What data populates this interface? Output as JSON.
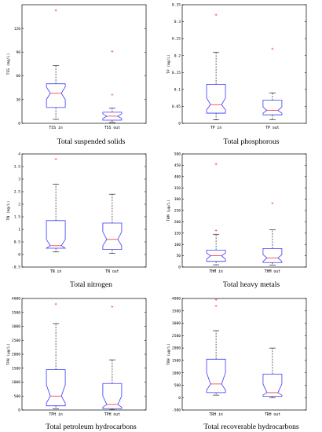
{
  "colors": {
    "box": "#3a3aff",
    "median": "#ff3030",
    "whisker": "#000000",
    "outlier": "#ff3030",
    "axis": "#000000"
  },
  "chart_data": [
    {
      "type": "box",
      "title": "",
      "caption": "Total suspended solids",
      "ylabel": "TSS (mg/L)",
      "ylim": [
        0,
        150
      ],
      "yticks": [
        0,
        30,
        60,
        90,
        120
      ],
      "categories": [
        "TSS in",
        "TSS out"
      ],
      "boxes": [
        {
          "whisker_low": 5,
          "q1": 20,
          "median": 38,
          "q3": 50,
          "whisker_high": 73,
          "notch_low": 30,
          "notch_high": 46,
          "outliers": [
            143
          ]
        },
        {
          "whisker_low": 1,
          "q1": 4,
          "median": 9,
          "q3": 14,
          "whisker_high": 19,
          "notch_low": 6,
          "notch_high": 12,
          "outliers": [
            36,
            91
          ]
        }
      ]
    },
    {
      "type": "box",
      "title": "",
      "caption": "Total phosphorous",
      "ylabel": "TP (mg/L)",
      "ylim": [
        0,
        0.35
      ],
      "yticks": [
        0,
        0.05,
        0.1,
        0.15,
        0.2,
        0.25,
        0.3,
        0.35
      ],
      "categories": [
        "TP in",
        "TP out"
      ],
      "boxes": [
        {
          "whisker_low": 0.01,
          "q1": 0.03,
          "median": 0.055,
          "q3": 0.115,
          "whisker_high": 0.21,
          "notch_low": 0.04,
          "notch_high": 0.075,
          "outliers": [
            0.32
          ]
        },
        {
          "whisker_low": 0.01,
          "q1": 0.025,
          "median": 0.038,
          "q3": 0.068,
          "whisker_high": 0.09,
          "notch_low": 0.03,
          "notch_high": 0.048,
          "outliers": [
            0.22
          ]
        }
      ]
    },
    {
      "type": "box",
      "title": "",
      "caption": "Total nitrogen",
      "ylabel": "TN (mg/L)",
      "ylim": [
        -0.5,
        4
      ],
      "yticks": [
        -0.5,
        0,
        0.5,
        1,
        1.5,
        2,
        2.5,
        3,
        3.5,
        4
      ],
      "categories": [
        "TN in",
        "TN out"
      ],
      "boxes": [
        {
          "whisker_low": 0.1,
          "q1": 0.25,
          "median": 0.35,
          "q3": 1.35,
          "whisker_high": 2.8,
          "notch_low": 0.2,
          "notch_high": 0.6,
          "outliers": [
            3.8
          ]
        },
        {
          "whisker_low": 0.05,
          "q1": 0.2,
          "median": 0.6,
          "q3": 1.25,
          "whisker_high": 2.4,
          "notch_low": 0.35,
          "notch_high": 0.9,
          "outliers": []
        }
      ]
    },
    {
      "type": "box",
      "title": "",
      "caption": "Total heavy metals",
      "ylabel": "THM (µg/L)",
      "ylim": [
        0,
        500
      ],
      "yticks": [
        0,
        50,
        100,
        150,
        200,
        250,
        300,
        350,
        400,
        450,
        500
      ],
      "categories": [
        "THM in",
        "THM out"
      ],
      "boxes": [
        {
          "whisker_low": 10,
          "q1": 25,
          "median": 50,
          "q3": 75,
          "whisker_high": 145,
          "notch_low": 35,
          "notch_high": 62,
          "outliers": [
            162,
            455
          ]
        },
        {
          "whisker_low": 8,
          "q1": 20,
          "median": 40,
          "q3": 82,
          "whisker_high": 165,
          "notch_low": 25,
          "notch_high": 55,
          "outliers": [
            282
          ]
        }
      ]
    },
    {
      "type": "box",
      "title": "",
      "caption": "Total petroleum hydrocarbons",
      "ylabel": "TPH (µg/L)",
      "ylim": [
        0,
        4000
      ],
      "yticks": [
        0,
        500,
        1000,
        1500,
        2000,
        2500,
        3000,
        3500,
        4000
      ],
      "categories": [
        "TPH in",
        "TPH out"
      ],
      "boxes": [
        {
          "whisker_low": 50,
          "q1": 150,
          "median": 500,
          "q3": 1450,
          "whisker_high": 3100,
          "notch_low": 250,
          "notch_high": 900,
          "outliers": [
            3800
          ]
        },
        {
          "whisker_low": 10,
          "q1": 50,
          "median": 200,
          "q3": 950,
          "whisker_high": 1800,
          "notch_low": 100,
          "notch_high": 500,
          "outliers": [
            3700
          ]
        }
      ]
    },
    {
      "type": "box",
      "title": "",
      "caption": "Total recoverable hydrocarbons",
      "ylabel": "TRH (µg/L)",
      "ylim": [
        -500,
        4000
      ],
      "yticks": [
        -500,
        0,
        500,
        1000,
        1500,
        2000,
        2500,
        3000,
        3500,
        4000
      ],
      "categories": [
        "TRH in",
        "TRH out"
      ],
      "boxes": [
        {
          "whisker_low": 100,
          "q1": 200,
          "median": 550,
          "q3": 1550,
          "whisker_high": 2700,
          "notch_low": 300,
          "notch_high": 1000,
          "outliers": [
            3700,
            3950
          ]
        },
        {
          "whisker_low": 0,
          "q1": 50,
          "median": 200,
          "q3": 950,
          "whisker_high": 2000,
          "notch_low": 100,
          "notch_high": 550,
          "outliers": []
        }
      ]
    }
  ]
}
